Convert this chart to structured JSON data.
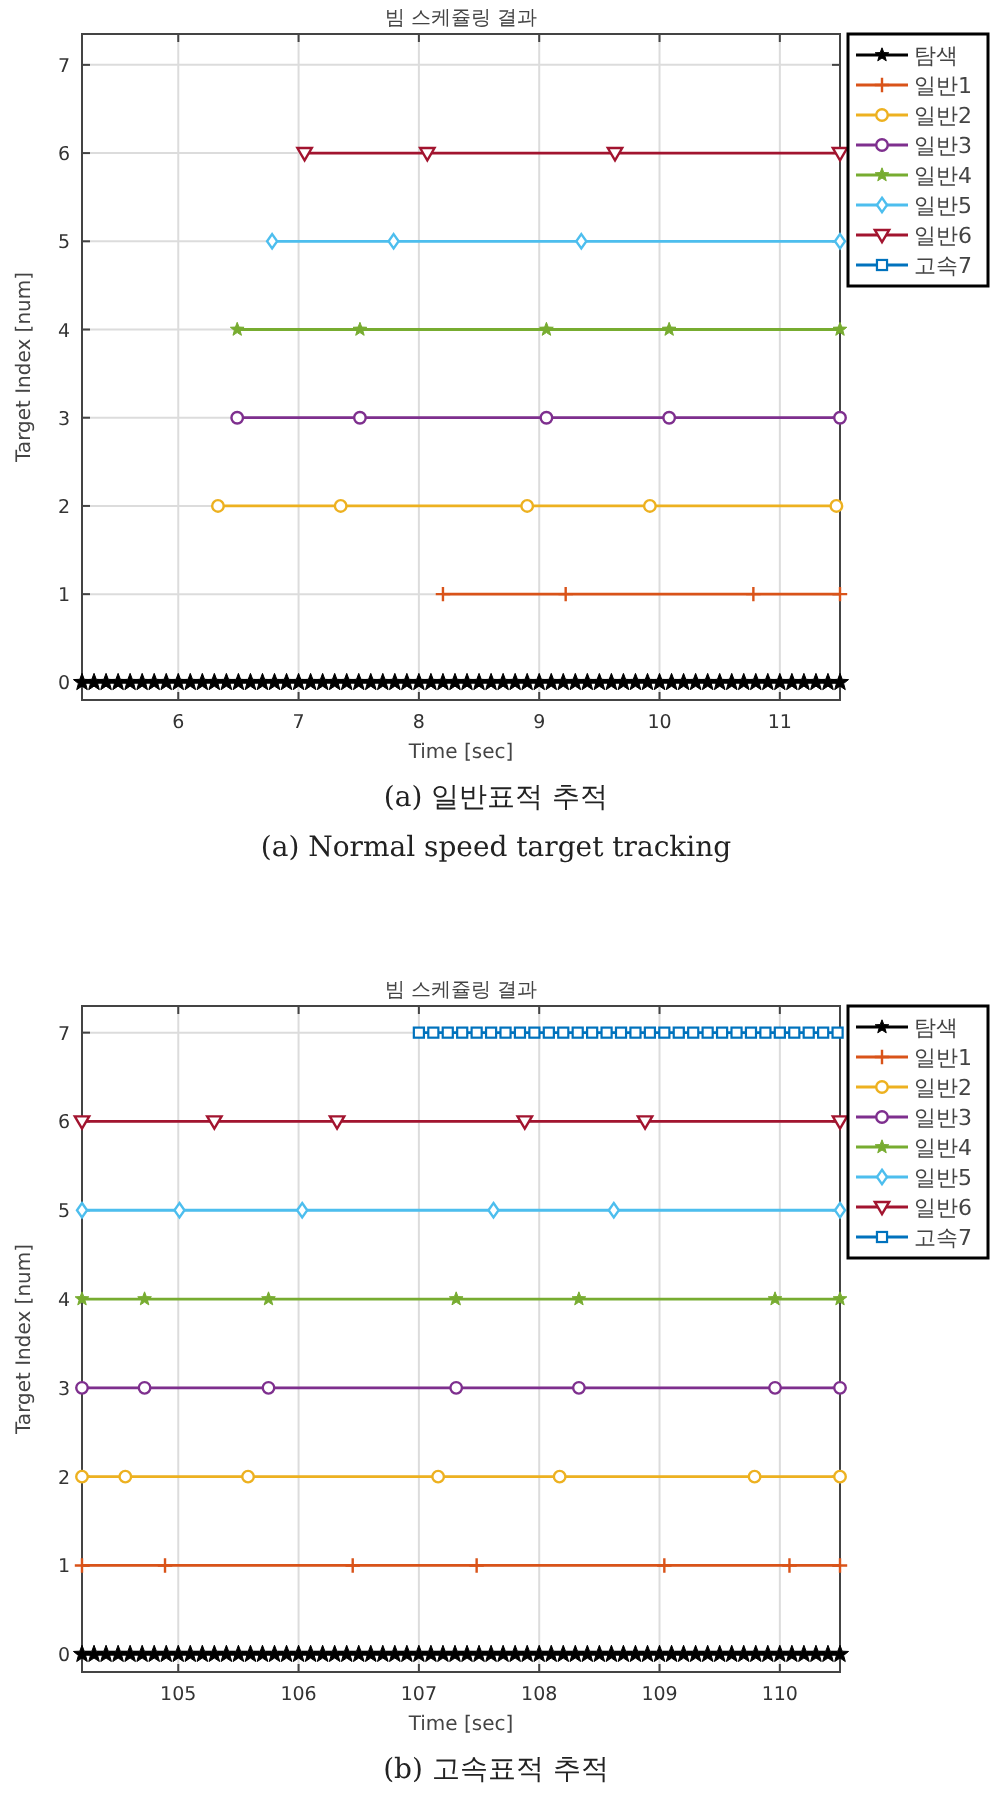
{
  "chart_data": [
    {
      "type": "line",
      "title": "빔 스케쥴링 결과",
      "xlabel": "Time [sec]",
      "ylabel": "Target Index [num]",
      "xlim": [
        5.2,
        11.5
      ],
      "ylim": [
        -0.2,
        7.35
      ],
      "xticks": [
        6,
        7,
        8,
        9,
        10,
        11
      ],
      "yticks": [
        0,
        1,
        2,
        3,
        4,
        5,
        6,
        7
      ],
      "grid": true,
      "legend": "top right",
      "line_style": "solid",
      "series": [
        {
          "name": "탐색",
          "color": "#000000",
          "marker": "star",
          "x": [
            5.2,
            5.3,
            5.4,
            5.5,
            5.6,
            5.7,
            5.8,
            5.9,
            6.0,
            6.1,
            6.2,
            6.3,
            6.4,
            6.5,
            6.6,
            6.7,
            6.8,
            6.9,
            7.0,
            7.1,
            7.2,
            7.3,
            7.4,
            7.5,
            7.6,
            7.7,
            7.8,
            7.9,
            8.0,
            8.1,
            8.2,
            8.3,
            8.4,
            8.5,
            8.6,
            8.7,
            8.8,
            8.9,
            9.0,
            9.1,
            9.2,
            9.3,
            9.4,
            9.5,
            9.6,
            9.7,
            9.8,
            9.9,
            10.0,
            10.1,
            10.2,
            10.3,
            10.4,
            10.5,
            10.6,
            10.7,
            10.8,
            10.9,
            11.0,
            11.1,
            11.2,
            11.3,
            11.4,
            11.5
          ],
          "values": [
            0,
            0,
            0,
            0,
            0,
            0,
            0,
            0,
            0,
            0,
            0,
            0,
            0,
            0,
            0,
            0,
            0,
            0,
            0,
            0,
            0,
            0,
            0,
            0,
            0,
            0,
            0,
            0,
            0,
            0,
            0,
            0,
            0,
            0,
            0,
            0,
            0,
            0,
            0,
            0,
            0,
            0,
            0,
            0,
            0,
            0,
            0,
            0,
            0,
            0,
            0,
            0,
            0,
            0,
            0,
            0,
            0,
            0,
            0,
            0,
            0,
            0,
            0,
            0
          ]
        },
        {
          "name": "일반1",
          "color": "#d95319",
          "marker": "cross",
          "x": [
            8.2,
            9.22,
            10.78,
            11.5
          ],
          "values": [
            1,
            1,
            1,
            1
          ]
        },
        {
          "name": "일반2",
          "color": "#edb120",
          "marker": "circle",
          "x": [
            6.33,
            7.35,
            8.9,
            9.92,
            11.47
          ],
          "values": [
            2,
            2,
            2,
            2,
            2
          ]
        },
        {
          "name": "일반3",
          "color": "#7e2f8e",
          "marker": "circle",
          "x": [
            6.49,
            7.51,
            9.06,
            10.08,
            11.5
          ],
          "values": [
            3,
            3,
            3,
            3,
            3
          ]
        },
        {
          "name": "일반4",
          "color": "#77ac30",
          "marker": "star",
          "x": [
            6.49,
            7.51,
            9.06,
            10.08,
            11.5
          ],
          "values": [
            4,
            4,
            4,
            4,
            4
          ]
        },
        {
          "name": "일반5",
          "color": "#4dbeee",
          "marker": "diamond",
          "x": [
            6.78,
            7.79,
            9.35,
            11.5
          ],
          "values": [
            5,
            5,
            5,
            5
          ]
        },
        {
          "name": "일반6",
          "color": "#a2142f",
          "marker": "triangle",
          "x": [
            7.05,
            8.07,
            9.63,
            11.5
          ],
          "values": [
            6,
            6,
            6,
            6
          ]
        },
        {
          "name": "고속7",
          "color": "#0072bd",
          "marker": "square"
        }
      ],
      "annotations": [
        "(a) 일반표적 추적",
        "(a) Normal  speed target tracking"
      ]
    },
    {
      "type": "line",
      "title": "빔 스케쥴링 결과",
      "xlabel": "Time [sec]",
      "ylabel": "Target Index [num]",
      "xlim": [
        104.2,
        110.5
      ],
      "ylim": [
        -0.2,
        7.3
      ],
      "xticks": [
        105,
        106,
        107,
        108,
        109,
        110
      ],
      "yticks": [
        0,
        1,
        2,
        3,
        4,
        5,
        6,
        7
      ],
      "grid": true,
      "legend": "top right",
      "line_style": "solid",
      "series": [
        {
          "name": "탐색",
          "color": "#000000",
          "marker": "star",
          "x": [
            104.2,
            104.3,
            104.4,
            104.5,
            104.6,
            104.7,
            104.8,
            104.9,
            105.0,
            105.1,
            105.2,
            105.3,
            105.4,
            105.5,
            105.6,
            105.7,
            105.8,
            105.9,
            106.0,
            106.1,
            106.2,
            106.3,
            106.4,
            106.5,
            106.6,
            106.7,
            106.8,
            106.9,
            107.0,
            107.1,
            107.2,
            107.3,
            107.4,
            107.5,
            107.6,
            107.7,
            107.8,
            107.9,
            108.0,
            108.1,
            108.2,
            108.3,
            108.4,
            108.5,
            108.6,
            108.7,
            108.8,
            108.9,
            109.0,
            109.1,
            109.2,
            109.3,
            109.4,
            109.5,
            109.6,
            109.7,
            109.8,
            109.9,
            110.0,
            110.1,
            110.2,
            110.3,
            110.4,
            110.5
          ],
          "values": [
            0,
            0,
            0,
            0,
            0,
            0,
            0,
            0,
            0,
            0,
            0,
            0,
            0,
            0,
            0,
            0,
            0,
            0,
            0,
            0,
            0,
            0,
            0,
            0,
            0,
            0,
            0,
            0,
            0,
            0,
            0,
            0,
            0,
            0,
            0,
            0,
            0,
            0,
            0,
            0,
            0,
            0,
            0,
            0,
            0,
            0,
            0,
            0,
            0,
            0,
            0,
            0,
            0,
            0,
            0,
            0,
            0,
            0,
            0,
            0,
            0,
            0,
            0,
            0
          ]
        },
        {
          "name": "일반1",
          "color": "#d95319",
          "marker": "cross",
          "x": [
            104.2,
            104.89,
            106.45,
            107.48,
            109.04,
            110.08,
            110.5
          ],
          "values": [
            1,
            1,
            1,
            1,
            1,
            1,
            1
          ]
        },
        {
          "name": "일반2",
          "color": "#edb120",
          "marker": "circle",
          "x": [
            104.2,
            104.56,
            105.58,
            107.16,
            108.17,
            109.79,
            110.5
          ],
          "values": [
            2,
            2,
            2,
            2,
            2,
            2,
            2
          ]
        },
        {
          "name": "일반3",
          "color": "#7e2f8e",
          "marker": "circle",
          "x": [
            104.2,
            104.72,
            105.75,
            107.31,
            108.33,
            109.96,
            110.5
          ],
          "values": [
            3,
            3,
            3,
            3,
            3,
            3,
            3
          ]
        },
        {
          "name": "일반4",
          "color": "#77ac30",
          "marker": "star",
          "x": [
            104.2,
            104.72,
            105.75,
            107.31,
            108.33,
            109.96,
            110.5
          ],
          "values": [
            4,
            4,
            4,
            4,
            4,
            4,
            4
          ]
        },
        {
          "name": "일반5",
          "color": "#4dbeee",
          "marker": "diamond",
          "x": [
            104.2,
            105.01,
            106.03,
            107.62,
            108.62,
            110.5
          ],
          "values": [
            5,
            5,
            5,
            5,
            5,
            5
          ]
        },
        {
          "name": "일반6",
          "color": "#a2142f",
          "marker": "triangle",
          "x": [
            104.2,
            105.3,
            106.32,
            107.88,
            108.88,
            110.5
          ],
          "values": [
            6,
            6,
            6,
            6,
            6,
            6
          ]
        },
        {
          "name": "고속7",
          "color": "#0072bd",
          "marker": "square",
          "x": [
            107.0,
            107.12,
            107.24,
            107.36,
            107.48,
            107.6,
            107.72,
            107.84,
            107.96,
            108.08,
            108.2,
            108.32,
            108.44,
            108.56,
            108.68,
            108.8,
            108.92,
            109.04,
            109.16,
            109.28,
            109.4,
            109.52,
            109.64,
            109.76,
            109.88,
            110.0,
            110.12,
            110.24,
            110.36,
            110.48
          ],
          "values": [
            7,
            7,
            7,
            7,
            7,
            7,
            7,
            7,
            7,
            7,
            7,
            7,
            7,
            7,
            7,
            7,
            7,
            7,
            7,
            7,
            7,
            7,
            7,
            7,
            7,
            7,
            7,
            7,
            7,
            7
          ]
        }
      ],
      "annotations": [
        "(b) 고속표적 추적"
      ]
    }
  ]
}
